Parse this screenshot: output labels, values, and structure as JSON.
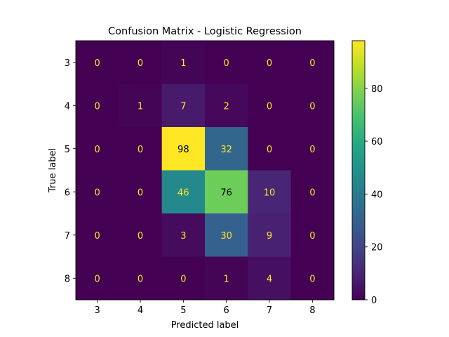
{
  "chart_data": {
    "type": "heatmap",
    "title": "Confusion Matrix - Logistic Regression",
    "xlabel": "Predicted label",
    "ylabel": "True label",
    "x_categories": [
      "3",
      "4",
      "5",
      "6",
      "7",
      "8"
    ],
    "y_categories": [
      "3",
      "4",
      "5",
      "6",
      "7",
      "8"
    ],
    "values": [
      [
        0,
        0,
        1,
        0,
        0,
        0
      ],
      [
        0,
        1,
        7,
        2,
        0,
        0
      ],
      [
        0,
        0,
        98,
        32,
        0,
        0
      ],
      [
        0,
        0,
        46,
        76,
        10,
        0
      ],
      [
        0,
        0,
        3,
        30,
        9,
        0
      ],
      [
        0,
        0,
        0,
        1,
        4,
        0
      ]
    ],
    "colormap": "viridis",
    "colorbar": {
      "range": [
        0,
        98
      ],
      "ticks": [
        0,
        20,
        40,
        60,
        80
      ]
    },
    "grid": false
  }
}
